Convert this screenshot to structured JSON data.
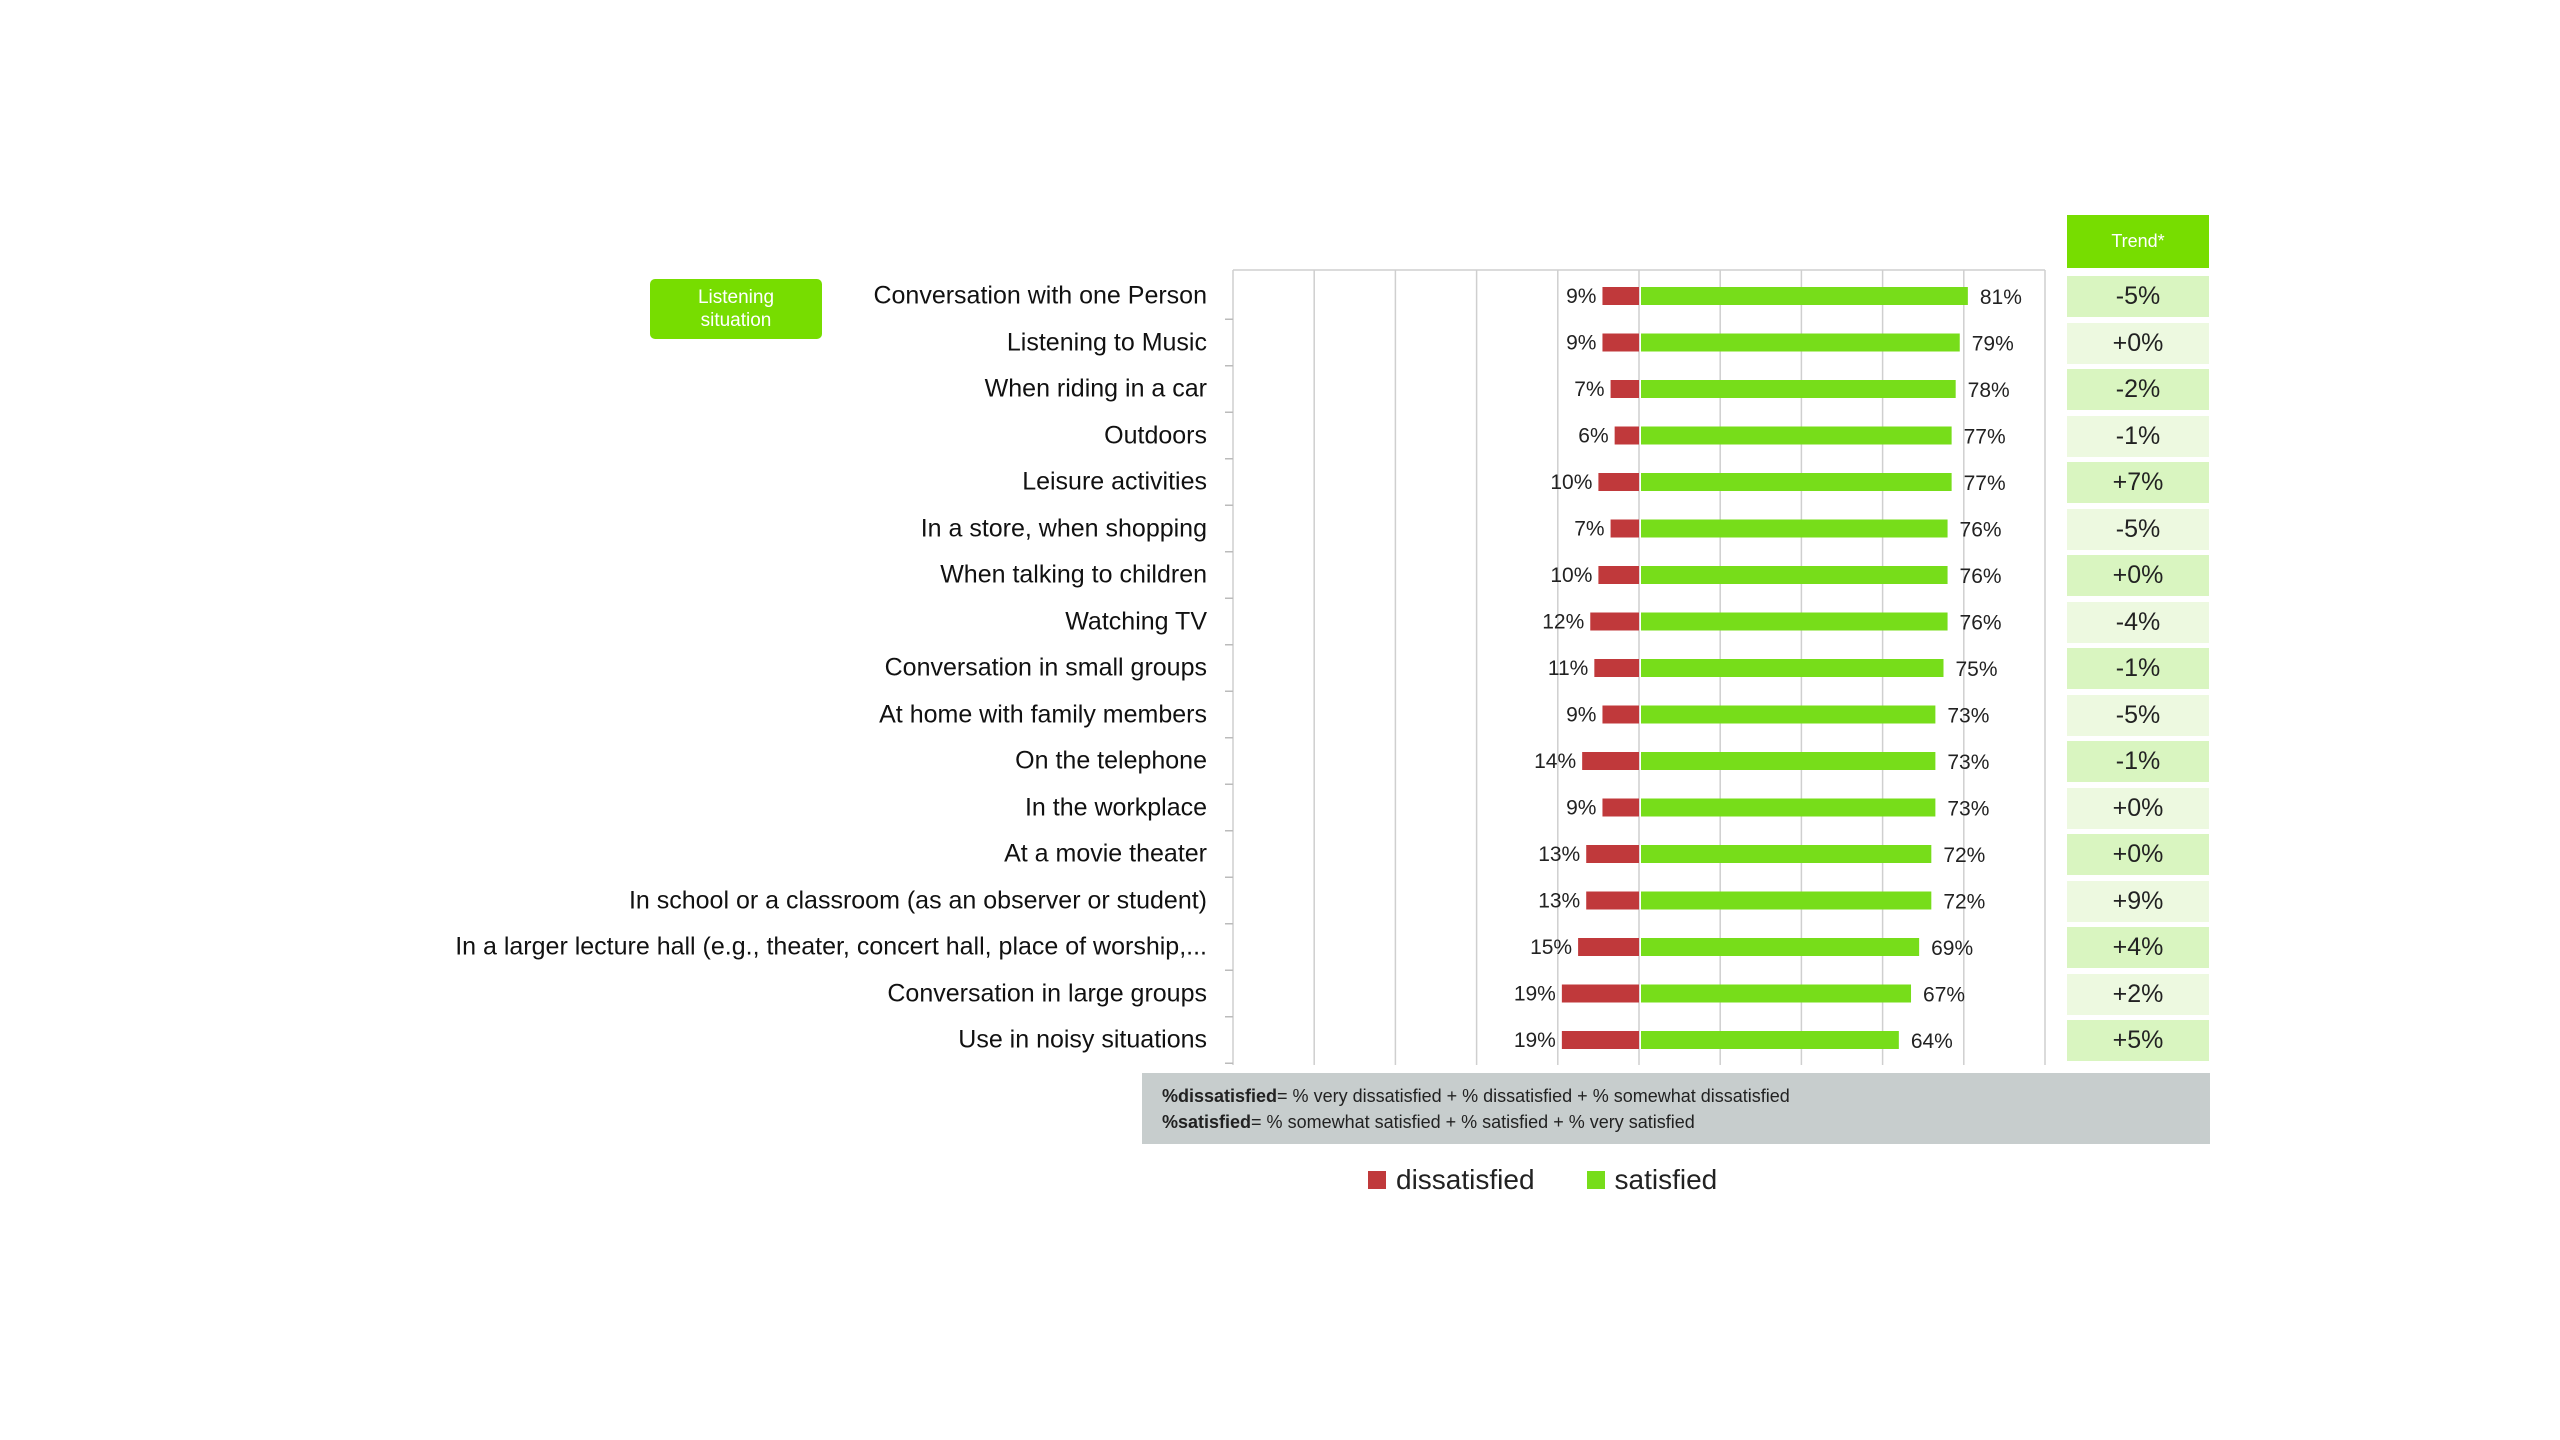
{
  "badge_label": "Listening\nsituation",
  "trend_header": "Trend*",
  "chart_data": {
    "type": "bar",
    "orientation": "horizontal",
    "diverging": true,
    "categories": [
      "Conversation with one Person",
      "Listening to Music",
      "When riding in a car",
      "Outdoors",
      "Leisure activities",
      "In a store, when shopping",
      "When talking to children",
      "Watching TV",
      "Conversation in small groups",
      "At home with family members",
      "On the telephone",
      "In the workplace",
      "At a movie theater",
      "In school or a classroom (as an observer or student)",
      "In a larger lecture hall (e.g., theater, concert hall, place of worship,...",
      "Conversation in large groups",
      "Use in noisy situations"
    ],
    "series": [
      {
        "name": "dissatisfied",
        "color": "#c0393b",
        "values": [
          9,
          9,
          7,
          6,
          10,
          7,
          10,
          12,
          11,
          9,
          14,
          9,
          13,
          13,
          15,
          19,
          19
        ],
        "labels": [
          "9%",
          "9%",
          "7%",
          "6%",
          "10%",
          "7%",
          "10%",
          "12%",
          "11%",
          "9%",
          "14%",
          "9%",
          "13%",
          "13%",
          "15%",
          "19%",
          "19%"
        ]
      },
      {
        "name": "satisfied",
        "color": "#77dd1a",
        "values": [
          81,
          79,
          78,
          77,
          77,
          76,
          76,
          76,
          75,
          73,
          73,
          73,
          72,
          72,
          69,
          67,
          64
        ],
        "labels": [
          "81%",
          "79%",
          "78%",
          "77%",
          "77%",
          "76%",
          "76%",
          "76%",
          "75%",
          "73%",
          "73%",
          "73%",
          "72%",
          "72%",
          "69%",
          "67%",
          "64%"
        ]
      }
    ],
    "trend": [
      "-5%",
      "+0%",
      "-2%",
      "-1%",
      "+7%",
      "-5%",
      "+0%",
      "-4%",
      "-1%",
      "-5%",
      "-1%",
      "+0%",
      "+0%",
      "+9%",
      "+4%",
      "+2%",
      "+5%"
    ],
    "xlim": [
      -100,
      100
    ],
    "grid": true
  },
  "footnote": {
    "line1_bold": "%dissatisfied",
    "line1_text": "= % very dissatisfied + % dissatisfied + % somewhat dissatisfied",
    "line2_bold": "%satisfied",
    "line2_text": "= % somewhat satisfied + % satisfied + % very satisfied"
  },
  "legend": {
    "dissatisfied_label": "dissatisfied",
    "satisfied_label": "satisfied"
  }
}
